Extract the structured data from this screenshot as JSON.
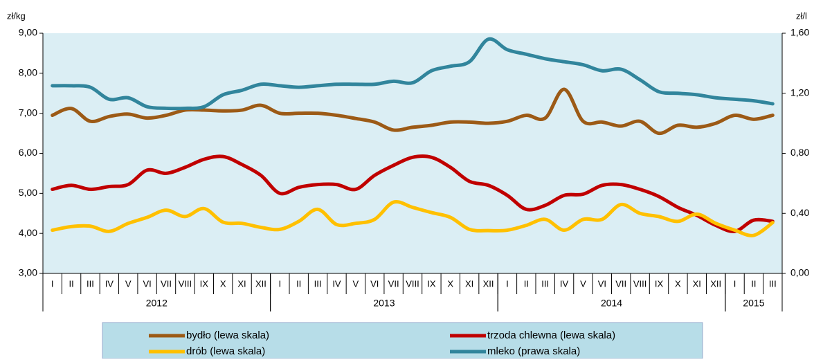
{
  "chart_data": {
    "type": "line",
    "y_label": "zł/kg",
    "y2_label": "zł/l",
    "categories": [
      "I",
      "II",
      "III",
      "IV",
      "V",
      "VI",
      "VII",
      "VIII",
      "IX",
      "X",
      "XI",
      "XII",
      "I",
      "II",
      "III",
      "IV",
      "V",
      "VI",
      "VII",
      "VIII",
      "IX",
      "X",
      "XI",
      "XII",
      "I",
      "II",
      "III",
      "IV",
      "V",
      "VI",
      "VII",
      "VIII",
      "IX",
      "X",
      "XI",
      "XII",
      "I",
      "II",
      "III"
    ],
    "groups": [
      {
        "label": "2012",
        "count": 12
      },
      {
        "label": "2013",
        "count": 12
      },
      {
        "label": "2014",
        "count": 12
      },
      {
        "label": "2015",
        "count": 3
      }
    ],
    "ylim": [
      3,
      9
    ],
    "yticks": [
      {
        "value": 3,
        "label": "3,00"
      },
      {
        "value": 4,
        "label": "4,00"
      },
      {
        "value": 5,
        "label": "5,00"
      },
      {
        "value": 6,
        "label": "6,00"
      },
      {
        "value": 7,
        "label": "7,00"
      },
      {
        "value": 8,
        "label": "8,00"
      },
      {
        "value": 9,
        "label": "9,00"
      }
    ],
    "y2lim": [
      0,
      1.6
    ],
    "y2ticks": [
      {
        "value": 0,
        "label": "0,00"
      },
      {
        "value": 0.4,
        "label": "0,40"
      },
      {
        "value": 0.8,
        "label": "0,80"
      },
      {
        "value": 1.2,
        "label": "1,20"
      },
      {
        "value": 1.6,
        "label": "1,60"
      }
    ],
    "series": [
      {
        "name": "bydło (lewa skala)",
        "color": "#9c5a16",
        "values": [
          6.95,
          7.12,
          6.8,
          6.92,
          6.98,
          6.88,
          6.95,
          7.08,
          7.08,
          7.06,
          7.08,
          7.2,
          7.0,
          7.0,
          7.0,
          6.95,
          6.87,
          6.78,
          6.58,
          6.65,
          6.7,
          6.78,
          6.78,
          6.75,
          6.8,
          6.95,
          6.88,
          7.6,
          6.8,
          6.78,
          6.68,
          6.8,
          6.5,
          6.7,
          6.65,
          6.75,
          6.95,
          6.85,
          6.95
        ]
      },
      {
        "name": "trzoda chlewna (lewa skala)",
        "color": "#c00000",
        "values": [
          5.1,
          5.2,
          5.1,
          5.17,
          5.22,
          5.58,
          5.5,
          5.65,
          5.85,
          5.92,
          5.72,
          5.45,
          5.0,
          5.15,
          5.22,
          5.22,
          5.1,
          5.45,
          5.7,
          5.9,
          5.9,
          5.65,
          5.3,
          5.2,
          4.95,
          4.6,
          4.7,
          4.95,
          4.98,
          5.2,
          5.22,
          5.1,
          4.92,
          4.65,
          4.45,
          4.2,
          4.05,
          4.33,
          4.3
        ]
      },
      {
        "name": "drób (lewa skala)",
        "color": "#ffc000",
        "values": [
          4.08,
          4.17,
          4.18,
          4.05,
          4.25,
          4.4,
          4.58,
          4.42,
          4.62,
          4.28,
          4.25,
          4.15,
          4.1,
          4.3,
          4.6,
          4.22,
          4.25,
          4.35,
          4.78,
          4.65,
          4.52,
          4.4,
          4.1,
          4.07,
          4.08,
          4.2,
          4.35,
          4.08,
          4.35,
          4.35,
          4.72,
          4.5,
          4.42,
          4.3,
          4.48,
          4.25,
          4.08,
          3.95,
          4.27
        ]
      },
      {
        "name": "mleko (prawa skala)",
        "color": "#31859c",
        "axis": "y2",
        "values": [
          1.25,
          1.25,
          1.24,
          1.16,
          1.17,
          1.11,
          1.1,
          1.1,
          1.11,
          1.19,
          1.22,
          1.26,
          1.25,
          1.24,
          1.25,
          1.26,
          1.26,
          1.26,
          1.28,
          1.27,
          1.35,
          1.38,
          1.41,
          1.56,
          1.49,
          1.46,
          1.43,
          1.41,
          1.39,
          1.35,
          1.36,
          1.29,
          1.21,
          1.2,
          1.19,
          1.17,
          1.16,
          1.15,
          1.13
        ]
      }
    ]
  }
}
